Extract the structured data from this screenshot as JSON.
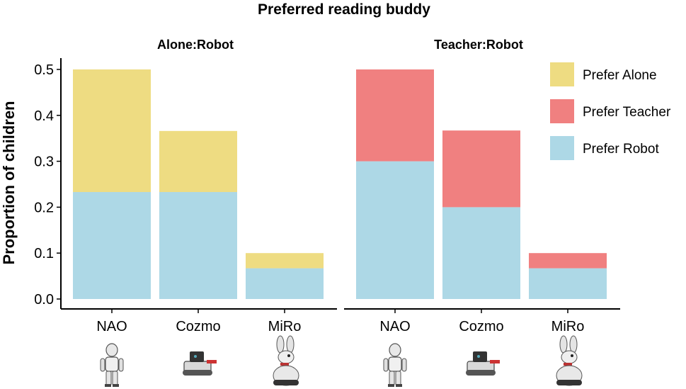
{
  "title": "Preferred reading buddy",
  "ylabel": "Proportion of children",
  "legend": {
    "items": [
      {
        "label": "Prefer Alone",
        "color": "#EEDC82"
      },
      {
        "label": "Prefer Teacher",
        "color": "#F08080"
      },
      {
        "label": "Prefer Robot",
        "color": "#ADD8E6"
      }
    ]
  },
  "icons": [
    "nao-robot-icon",
    "cozmo-robot-icon",
    "miro-robot-icon"
  ],
  "chart_data": [
    {
      "type": "bar",
      "stacked": true,
      "title": "Alone:Robot",
      "categories": [
        "NAO",
        "Cozmo",
        "MiRo"
      ],
      "ylim": [
        0,
        0.5
      ],
      "yticks": [
        "0.0",
        "0.1",
        "0.2",
        "0.3",
        "0.4",
        "0.5"
      ],
      "grid": false,
      "series": [
        {
          "name": "Prefer Robot",
          "color": "#ADD8E6",
          "values": [
            0.233,
            0.233,
            0.067
          ]
        },
        {
          "name": "Prefer Alone",
          "color": "#EEDC82",
          "values": [
            0.267,
            0.133,
            0.033
          ]
        }
      ]
    },
    {
      "type": "bar",
      "stacked": true,
      "title": "Teacher:Robot",
      "categories": [
        "NAO",
        "Cozmo",
        "MiRo"
      ],
      "ylim": [
        0,
        0.5
      ],
      "grid": false,
      "legend_position": "right",
      "series": [
        {
          "name": "Prefer Robot",
          "color": "#ADD8E6",
          "values": [
            0.3,
            0.2,
            0.067
          ]
        },
        {
          "name": "Prefer Teacher",
          "color": "#F08080",
          "values": [
            0.2,
            0.167,
            0.033
          ]
        }
      ]
    }
  ]
}
